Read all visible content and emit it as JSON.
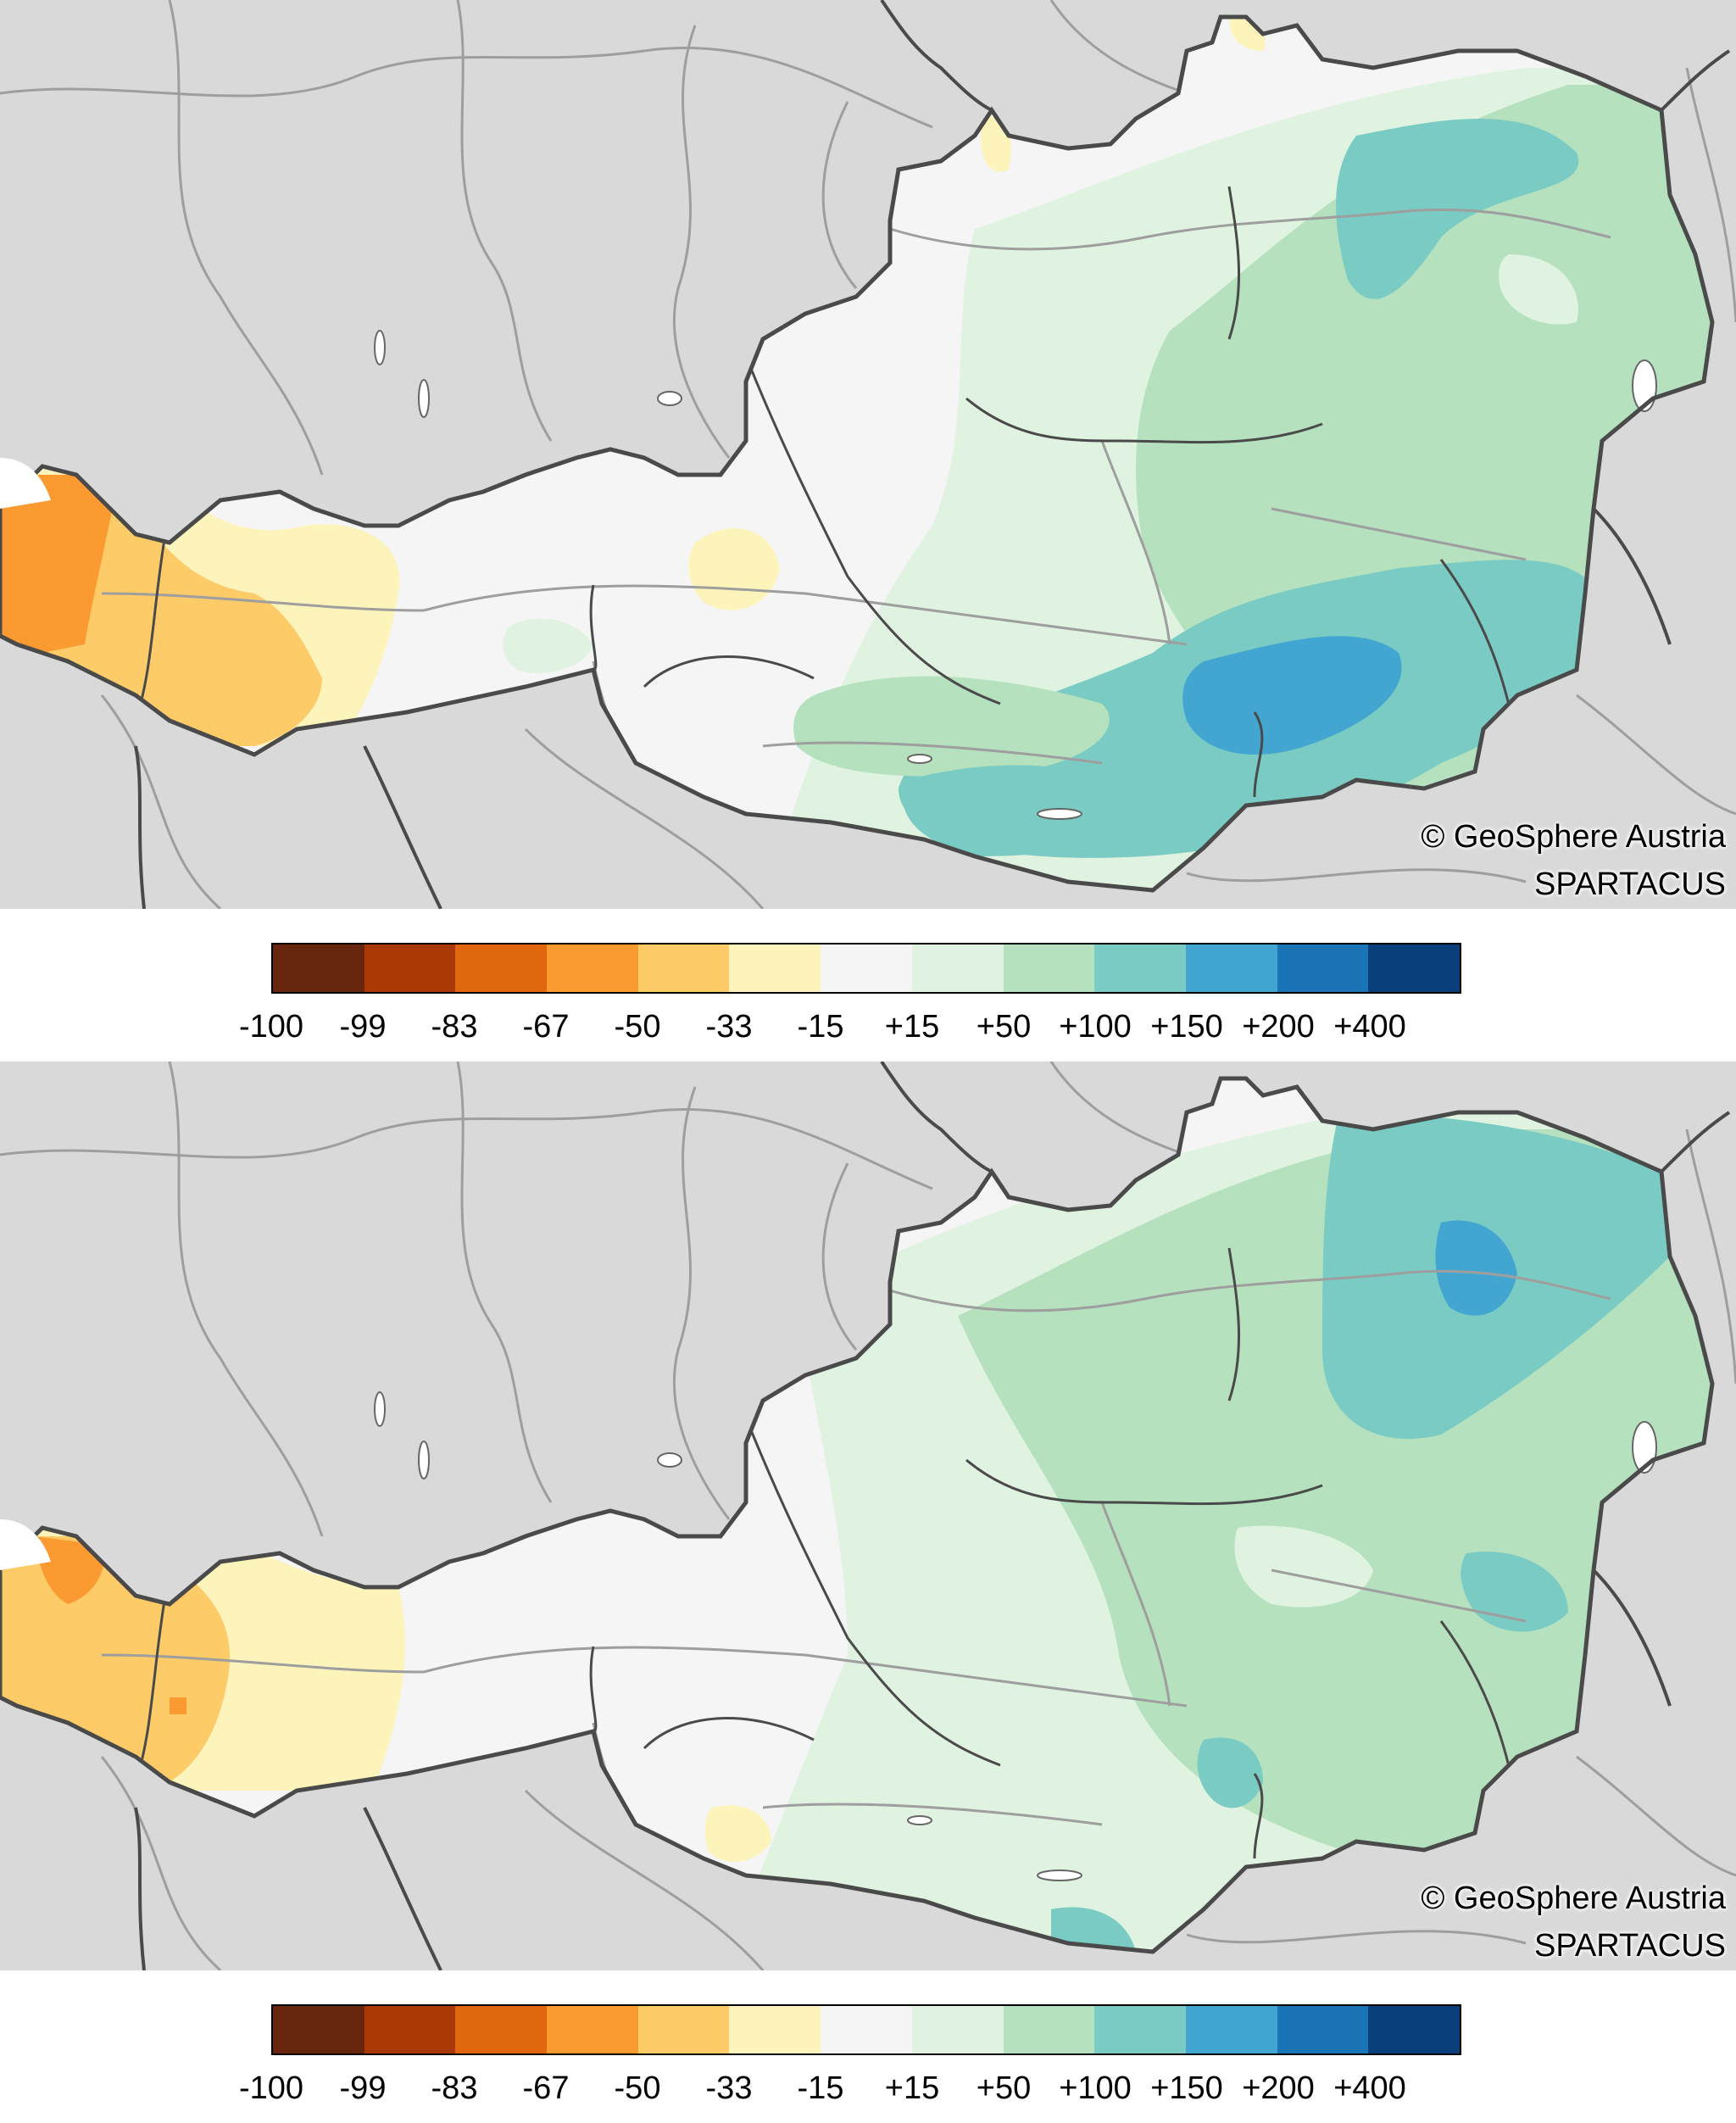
{
  "maps": [
    {
      "id": "top",
      "credit": "© GeoSphere Austria",
      "source": "SPARTACUS"
    },
    {
      "id": "bottom",
      "credit": "© GeoSphere Austria",
      "source": "SPARTACUS"
    }
  ],
  "legend": {
    "labels": [
      "-100",
      "-99",
      "-83",
      "-67",
      "-50",
      "-33",
      "-15",
      "+15",
      "+50",
      "+100",
      "+150",
      "+200",
      "+400"
    ],
    "colors": [
      "#67260d",
      "#aa3a05",
      "#e0660f",
      "#fb9a30",
      "#fecb69",
      "#fdf4bb",
      "#f5f5f5",
      "#dff3e0",
      "#b5e1bf",
      "#7acbc3",
      "#43a6d1",
      "#1a74b5",
      "#0b3f7c"
    ]
  },
  "palette": {
    "background": "#d9d9d9",
    "rivers": "#9e9e9e",
    "borders": "#4a4a4a",
    "lakes": "#ffffff"
  }
}
